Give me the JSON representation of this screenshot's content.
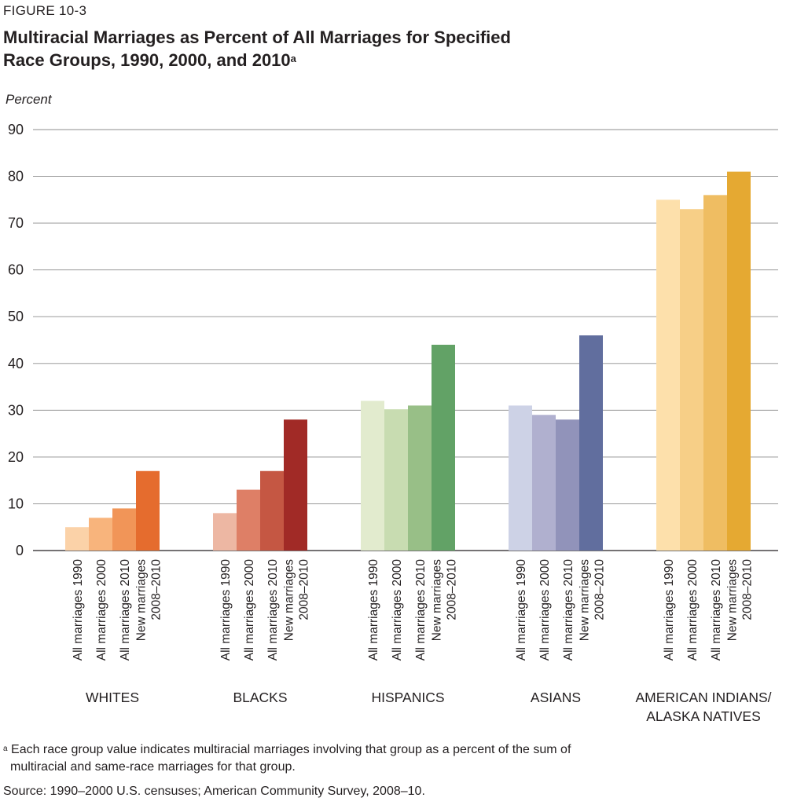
{
  "figure_label": "FIGURE 10-3",
  "title_line1": "Multiracial Marriages as Percent of All Marriages for Specified",
  "title_line2": "Race Groups, 1990, 2000, and 2010",
  "title_superscript": "a",
  "footnote_mark": "a",
  "footnote_line1": "Each race group value indicates multiracial marriages involving that group as a percent of the sum of",
  "footnote_line2": "multiracial and same-race marriages for that group.",
  "source": "Source: 1990–2000 U.S. censuses; American Community Survey, 2008–10.",
  "chart_data": {
    "type": "bar",
    "ylabel": "Percent",
    "ylim": [
      0,
      90
    ],
    "yticks": [
      0,
      10,
      20,
      30,
      40,
      50,
      60,
      70,
      80,
      90
    ],
    "grid": true,
    "bar_labels": [
      "All marriages 1990",
      "All marriages 2000",
      "All marriages 2010",
      "New marriages 2008–2010"
    ],
    "groups": [
      {
        "name": "WHITES",
        "values": [
          5,
          7,
          9,
          17
        ],
        "colors": [
          "#fbd2a8",
          "#f8b47c",
          "#f19558",
          "#e56c2e"
        ]
      },
      {
        "name": "BLACKS",
        "values": [
          8,
          13,
          17,
          28
        ],
        "colors": [
          "#edb7a3",
          "#de7f66",
          "#c55743",
          "#a12a26"
        ]
      },
      {
        "name": "HISPANICS",
        "values": [
          32,
          30.2,
          31,
          44
        ],
        "colors": [
          "#e2ebce",
          "#c8dcb1",
          "#98bf87",
          "#62a266"
        ]
      },
      {
        "name": "ASIANS",
        "values": [
          31,
          29,
          28,
          46
        ],
        "colors": [
          "#cdd2e6",
          "#b0b0cf",
          "#9193ba",
          "#616e9e"
        ]
      },
      {
        "name": "AMERICAN INDIANS/ ALASKA NATIVES",
        "values": [
          75,
          73,
          76,
          81
        ],
        "colors": [
          "#fde0ab",
          "#f7cf87",
          "#efbd62",
          "#e5a932"
        ]
      }
    ]
  }
}
